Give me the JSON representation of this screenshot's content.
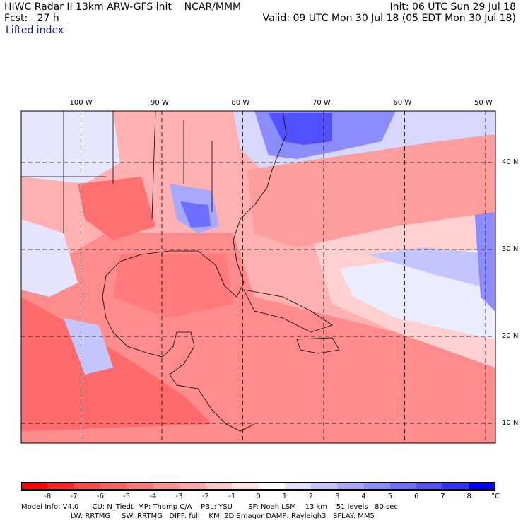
{
  "header": {
    "line1_left": "HIWC Radar II 13km ARW-GFS init    NCAR/MMM",
    "line1_right": "Init: 06 UTC Sun 29 Jul 18",
    "line2_left": "Fcst:   27 h",
    "line2_right": "Valid: 09 UTC Mon 30 Jul 18 (05 EDT Mon 30 Jul 18)",
    "field": "Lifted index"
  },
  "map": {
    "lon_labels": [
      "100 W",
      "90 W",
      "80 W",
      "70 W",
      "60 W",
      "50 W"
    ],
    "lat_labels": [
      "40 N",
      "30 N",
      "20 N",
      "10 N"
    ],
    "grid_lons": [
      -100,
      -90,
      -80,
      -70,
      -60,
      -50
    ],
    "grid_lats": [
      40,
      30,
      20,
      10
    ]
  },
  "colorbar": {
    "labels": [
      "-8",
      "-7",
      "-6",
      "-5",
      "-4",
      "-3",
      "-2",
      "-1",
      "0",
      "1",
      "2",
      "3",
      "4",
      "5",
      "6",
      "7",
      "8"
    ],
    "unit": "°C",
    "colors": [
      "#ff0000",
      "#ff2424",
      "#ff4848",
      "#ff6060",
      "#ff7a7a",
      "#ff9090",
      "#ffa8a8",
      "#ffc8c8",
      "#ffe4e4",
      "#ffffff",
      "#e0e0ff",
      "#c4c4ff",
      "#a8a8ff",
      "#8c8cff",
      "#6e6eff",
      "#5050ff",
      "#3030ff",
      "#0000ff"
    ]
  },
  "footer": {
    "line1": "Model Info: V4.0      CU: N_Tiedt  MP: Thomp C/A    PBL: YSU       SF: Noah LSM    13 km    51 levels   80 sec",
    "line2": "                      LW: RRTMG     SW: RRTMG   DIFF: full    KM: 2D Smagor DAMP: Rayleigh3   SFLAY: MM5"
  }
}
